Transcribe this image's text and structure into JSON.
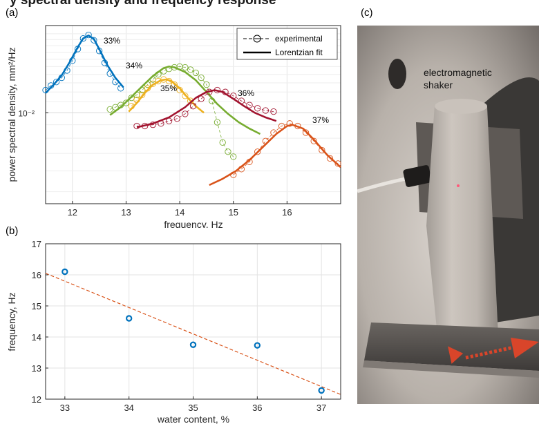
{
  "header": {
    "text": "y spectral density and frequency response"
  },
  "panel_a": {
    "label": "(a)"
  },
  "panel_b": {
    "label": "(b)"
  },
  "panel_c": {
    "label": "(c)",
    "caption": "electromagnetic shaker"
  },
  "chart_data": [
    {
      "type": "line",
      "panel": "a",
      "xlabel": "frequency, Hz",
      "ylabel": "power spectral density, mm²/Hz",
      "xlim": [
        11.5,
        17
      ],
      "xticks": [
        12,
        13,
        14,
        15,
        16
      ],
      "yscale": "log",
      "ylim": [
        0.0045,
        0.0215
      ],
      "yticks": [
        0.01
      ],
      "ytick_labels": [
        "10⁻²"
      ],
      "grid": true,
      "legend": {
        "position": "top-right",
        "entries": [
          "experimental",
          "Lorentzian fit"
        ]
      },
      "series": [
        {
          "name": "33%",
          "color": "#0072BD",
          "points_x": [
            11.5,
            11.6,
            11.7,
            11.8,
            11.9,
            12.0,
            12.1,
            12.2,
            12.3,
            12.4,
            12.5,
            12.6,
            12.7,
            12.8,
            12.9
          ],
          "points_y": [
            0.0122,
            0.0127,
            0.0131,
            0.0136,
            0.0145,
            0.0158,
            0.0175,
            0.0192,
            0.0198,
            0.0189,
            0.0172,
            0.0155,
            0.0141,
            0.0131,
            0.0124
          ],
          "fit_x": [
            11.5,
            11.65,
            11.8,
            11.95,
            12.1,
            12.2,
            12.3,
            12.4,
            12.5,
            12.65,
            12.8,
            12.95
          ],
          "fit_y": [
            0.0119,
            0.0128,
            0.0139,
            0.0156,
            0.0178,
            0.0192,
            0.0197,
            0.0191,
            0.0175,
            0.0152,
            0.0136,
            0.0125
          ]
        },
        {
          "name": "34%",
          "color": "#77AC30",
          "points_x": [
            12.7,
            12.8,
            12.9,
            13.0,
            13.1,
            13.2,
            13.3,
            13.4,
            13.5,
            13.6,
            13.7,
            13.8,
            13.9,
            14.0,
            14.1,
            14.2,
            14.3,
            14.4,
            14.5,
            14.6,
            14.7,
            14.8,
            14.9,
            15.0
          ],
          "points_y": [
            0.0103,
            0.0105,
            0.0107,
            0.0109,
            0.0114,
            0.0117,
            0.0122,
            0.0128,
            0.0134,
            0.014,
            0.0144,
            0.0147,
            0.0149,
            0.015,
            0.0149,
            0.0146,
            0.0142,
            0.0136,
            0.0128,
            0.0111,
            0.0092,
            0.0077,
            0.0071,
            0.0068
          ],
          "fit_x": [
            12.7,
            12.9,
            13.1,
            13.3,
            13.5,
            13.7,
            13.8,
            13.9,
            14.1,
            14.3,
            14.5,
            14.7,
            14.9,
            15.1,
            15.3,
            15.5
          ],
          "fit_y": [
            0.0098,
            0.0105,
            0.0115,
            0.0126,
            0.0138,
            0.0148,
            0.015,
            0.0149,
            0.0143,
            0.0133,
            0.012,
            0.0108,
            0.0099,
            0.0092,
            0.0087,
            0.0083
          ]
        },
        {
          "name": "35%",
          "color": "#EDB120",
          "points_x": [
            13.1,
            13.2,
            13.3,
            13.4,
            13.5,
            13.6,
            13.7,
            13.8,
            13.9,
            14.0,
            14.1,
            14.2
          ],
          "points_y": [
            0.0106,
            0.0112,
            0.0117,
            0.0124,
            0.0129,
            0.0132,
            0.0134,
            0.0132,
            0.0128,
            0.0122,
            0.0116,
            0.0111
          ],
          "fit_x": [
            13.05,
            13.2,
            13.35,
            13.5,
            13.65,
            13.75,
            13.85,
            14.0,
            14.15,
            14.3,
            14.45
          ],
          "fit_y": [
            0.0101,
            0.0109,
            0.0119,
            0.0128,
            0.0133,
            0.0134,
            0.0132,
            0.0124,
            0.0114,
            0.0106,
            0.01
          ]
        },
        {
          "name": "36%",
          "color": "#A2142F",
          "points_x": [
            13.2,
            13.35,
            13.5,
            13.65,
            13.8,
            13.95,
            14.1,
            14.25,
            14.4,
            14.55,
            14.7,
            14.85,
            15.0,
            15.15,
            15.3,
            15.45,
            15.6,
            15.75
          ],
          "points_y": [
            0.0089,
            0.0089,
            0.009,
            0.0091,
            0.0093,
            0.0095,
            0.0099,
            0.0106,
            0.0113,
            0.012,
            0.0122,
            0.012,
            0.0116,
            0.0111,
            0.0107,
            0.0104,
            0.0102,
            0.0101
          ],
          "fit_x": [
            13.2,
            13.5,
            13.8,
            14.1,
            14.3,
            14.5,
            14.65,
            14.8,
            15.0,
            15.2,
            15.4,
            15.6,
            15.8
          ],
          "fit_y": [
            0.0088,
            0.0091,
            0.0096,
            0.0105,
            0.0114,
            0.012,
            0.0122,
            0.012,
            0.0113,
            0.0106,
            0.01,
            0.0096,
            0.0093
          ]
        },
        {
          "name": "37%",
          "color": "#D95319",
          "points_x": [
            15.0,
            15.15,
            15.3,
            15.45,
            15.6,
            15.75,
            15.9,
            16.05,
            16.2,
            16.35,
            16.5,
            16.65,
            16.8,
            16.95
          ],
          "points_y": [
            0.0058,
            0.0061,
            0.0065,
            0.0071,
            0.0078,
            0.0084,
            0.0089,
            0.0091,
            0.0089,
            0.0084,
            0.0078,
            0.0072,
            0.0067,
            0.0064
          ],
          "fit_x": [
            14.55,
            14.8,
            15.05,
            15.3,
            15.55,
            15.8,
            16.0,
            16.1,
            16.3,
            16.5,
            16.75,
            17.0
          ],
          "fit_y": [
            0.0053,
            0.0056,
            0.006,
            0.0066,
            0.0074,
            0.0083,
            0.0089,
            0.009,
            0.0087,
            0.0079,
            0.0069,
            0.0062
          ]
        }
      ]
    },
    {
      "type": "scatter",
      "panel": "b",
      "xlabel": "water content, %",
      "ylabel": "frequency, Hz",
      "xlim": [
        32.7,
        37.3
      ],
      "ylim": [
        12,
        17
      ],
      "xticks": [
        33,
        34,
        35,
        36,
        37
      ],
      "yticks": [
        12,
        13,
        14,
        15,
        16,
        17
      ],
      "grid": true,
      "points": {
        "x": [
          33,
          34,
          35,
          36,
          37
        ],
        "y": [
          16.1,
          14.6,
          13.75,
          13.73,
          12.28
        ],
        "color": "#0072BD"
      },
      "trend": {
        "x": [
          32.7,
          37.3
        ],
        "y": [
          16.05,
          12.15
        ],
        "color": "#D95319",
        "style": "dashed"
      }
    }
  ]
}
